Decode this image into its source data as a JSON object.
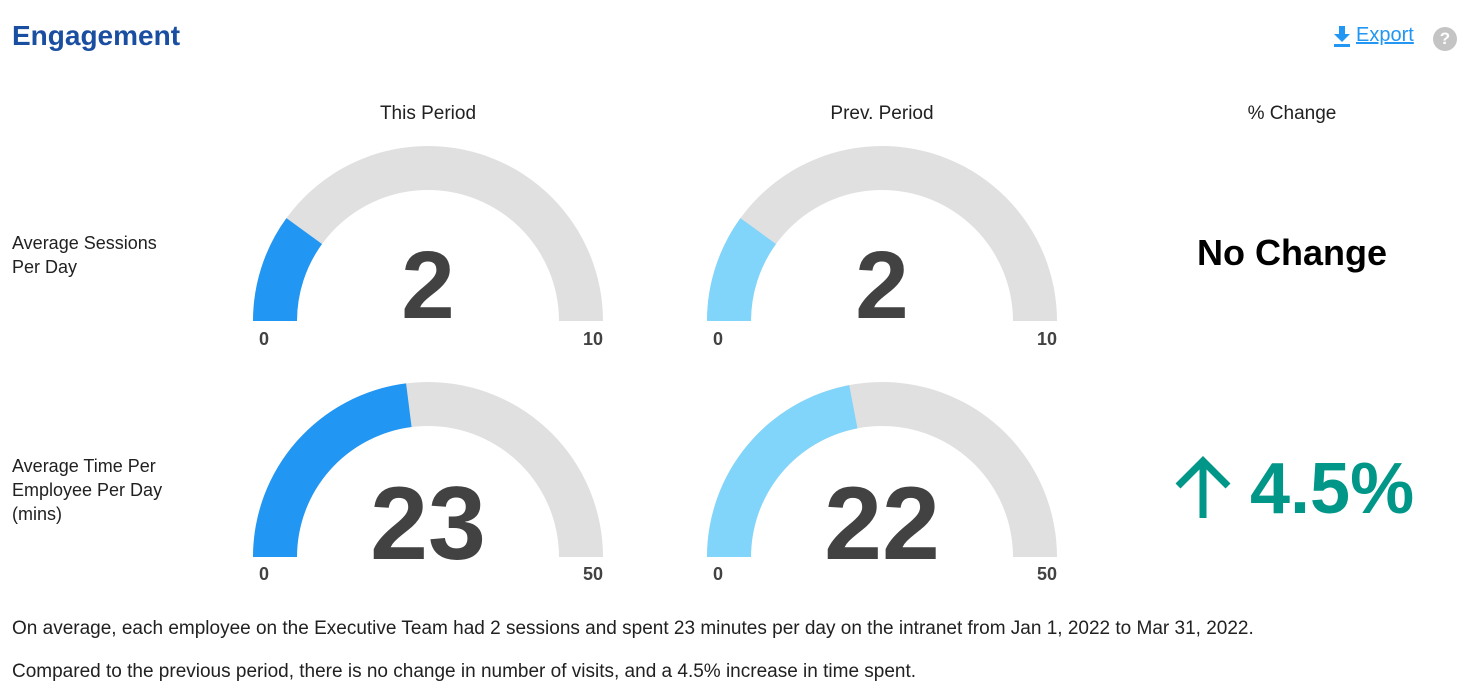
{
  "header": {
    "title": "Engagement",
    "export_label": "Export",
    "help_symbol": "?"
  },
  "columns": {
    "this_period": "This Period",
    "prev_period": "Prev. Period",
    "pct_change": "% Change"
  },
  "rows": [
    {
      "label_lines": [
        "Average Sessions",
        "Per Day"
      ],
      "this": {
        "value": "2",
        "min": "0",
        "max": "10",
        "fraction": 0.2
      },
      "prev": {
        "value": "2",
        "min": "0",
        "max": "10",
        "fraction": 0.2
      },
      "change": {
        "text": "No Change"
      }
    },
    {
      "label_lines": [
        "Average Time Per",
        "Employee Per Day",
        "(mins)"
      ],
      "this": {
        "value": "23",
        "min": "0",
        "max": "50",
        "fraction": 0.46
      },
      "prev": {
        "value": "22",
        "min": "0",
        "max": "50",
        "fraction": 0.44
      },
      "change": {
        "text": "4.5%",
        "direction": "up",
        "icon": "arrow-up-icon"
      }
    }
  ],
  "summary": {
    "line1": "On average, each employee on the Executive Team had 2 sessions and spent 23 minutes per day on the intranet from Jan 1, 2022 to Mar 31, 2022.",
    "line2": "Compared to the previous period, there is no change in number of visits, and a 4.5% increase in time spent."
  },
  "colors": {
    "title": "#1a4ea1",
    "this_fill": "#2196f3",
    "prev_fill": "#81d4fa",
    "track": "#e0e0e0",
    "increase": "#009688",
    "link": "#2196f3"
  }
}
